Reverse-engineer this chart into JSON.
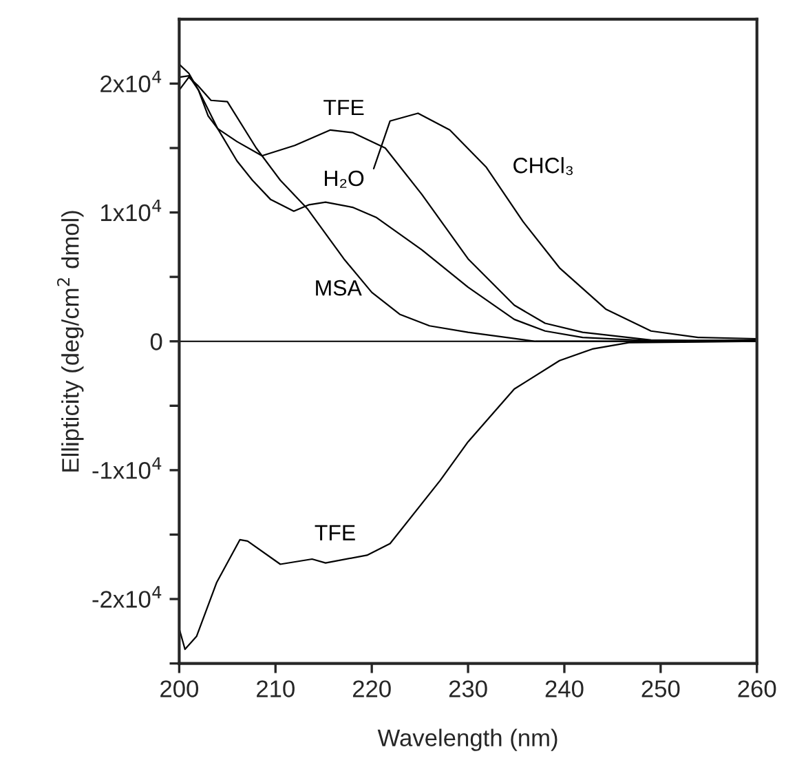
{
  "chart_data": {
    "type": "line",
    "xlabel": "Wavelength (nm)",
    "ylabel": "Ellipticity (deg/cm$^{2}$ dmol)",
    "xlim": [
      200,
      260
    ],
    "xticks": [
      200,
      210,
      220,
      230,
      240,
      250,
      260
    ],
    "ylim": [
      -25000,
      25000
    ],
    "yticks": [
      {
        "value": -25000,
        "label": null
      },
      {
        "value": -20000,
        "label": "-2x10$^{4}$"
      },
      {
        "value": -15000,
        "label": null
      },
      {
        "value": -10000,
        "label": "-1x10$^{4}$"
      },
      {
        "value": -5000,
        "label": null
      },
      0,
      {
        "value": 5000,
        "label": null
      },
      {
        "value": 10000,
        "label": "1x10$^{4}$"
      },
      {
        "value": 15000,
        "label": null
      },
      {
        "value": 20000,
        "label": "2x10$^{4}$"
      }
    ],
    "grid": false,
    "legend": false,
    "marker": "none",
    "line_style": "solid",
    "ref_lines": [
      {
        "axis": "y",
        "value": 0,
        "color": "#000000"
      }
    ],
    "series": [
      {
        "name": "TFE",
        "color": "#000000",
        "x": [
          200,
          201,
          202,
          203,
          204,
          206,
          208.6,
          212,
          215.7,
          218,
          221.4,
          225.2,
          230,
          234.8,
          238,
          241.9,
          249,
          260
        ],
        "values": [
          21500,
          20800,
          19500,
          17500,
          16500,
          15500,
          14400,
          15200,
          16400,
          16200,
          15000,
          11400,
          6400,
          2800,
          1400,
          700,
          100,
          0
        ]
      },
      {
        "name": "H₂O",
        "color": "#000000",
        "x": [
          200,
          201,
          202,
          204,
          206,
          207.6,
          209.5,
          211.9,
          213.5,
          215.2,
          218,
          220.5,
          225.2,
          230,
          234.8,
          238,
          241.9,
          250,
          260
        ],
        "values": [
          20500,
          20600,
          19500,
          16500,
          14000,
          12500,
          11000,
          10100,
          10600,
          10800,
          10400,
          9600,
          7100,
          4200,
          1700,
          800,
          300,
          0,
          100
        ]
      },
      {
        "name": "MSA",
        "color": "#000000",
        "x": [
          200,
          201,
          202,
          203.3,
          205,
          208,
          210.5,
          213.3,
          217.1,
          220,
          222.9,
          226,
          230,
          237,
          250,
          260
        ],
        "values": [
          19500,
          20500,
          19800,
          18700,
          18600,
          15000,
          12500,
          10300,
          6400,
          3800,
          2100,
          1200,
          700,
          0,
          0,
          100
        ]
      },
      {
        "name": "CHCl₃",
        "color": "#000000",
        "x": [
          220.2,
          221.9,
          224.8,
          228.1,
          231.9,
          235.7,
          239.5,
          244.3,
          249,
          253.9,
          260
        ],
        "values": [
          13400,
          17100,
          17700,
          16400,
          13500,
          9300,
          5700,
          2500,
          800,
          300,
          200
        ]
      },
      {
        "name": "TFE",
        "color": "#000000",
        "x": [
          200,
          200.6,
          201.8,
          203.9,
          206.3,
          207.1,
          210.5,
          213.8,
          215.2,
          219.5,
          221.9,
          227.1,
          230,
          234.8,
          239.5,
          242.9,
          246.7,
          260
        ],
        "values": [
          -22300,
          -23900,
          -22900,
          -18700,
          -15400,
          -15500,
          -17300,
          -16900,
          -17200,
          -16600,
          -15700,
          -10800,
          -7800,
          -3700,
          -1500,
          -600,
          -100,
          0
        ]
      }
    ]
  }
}
